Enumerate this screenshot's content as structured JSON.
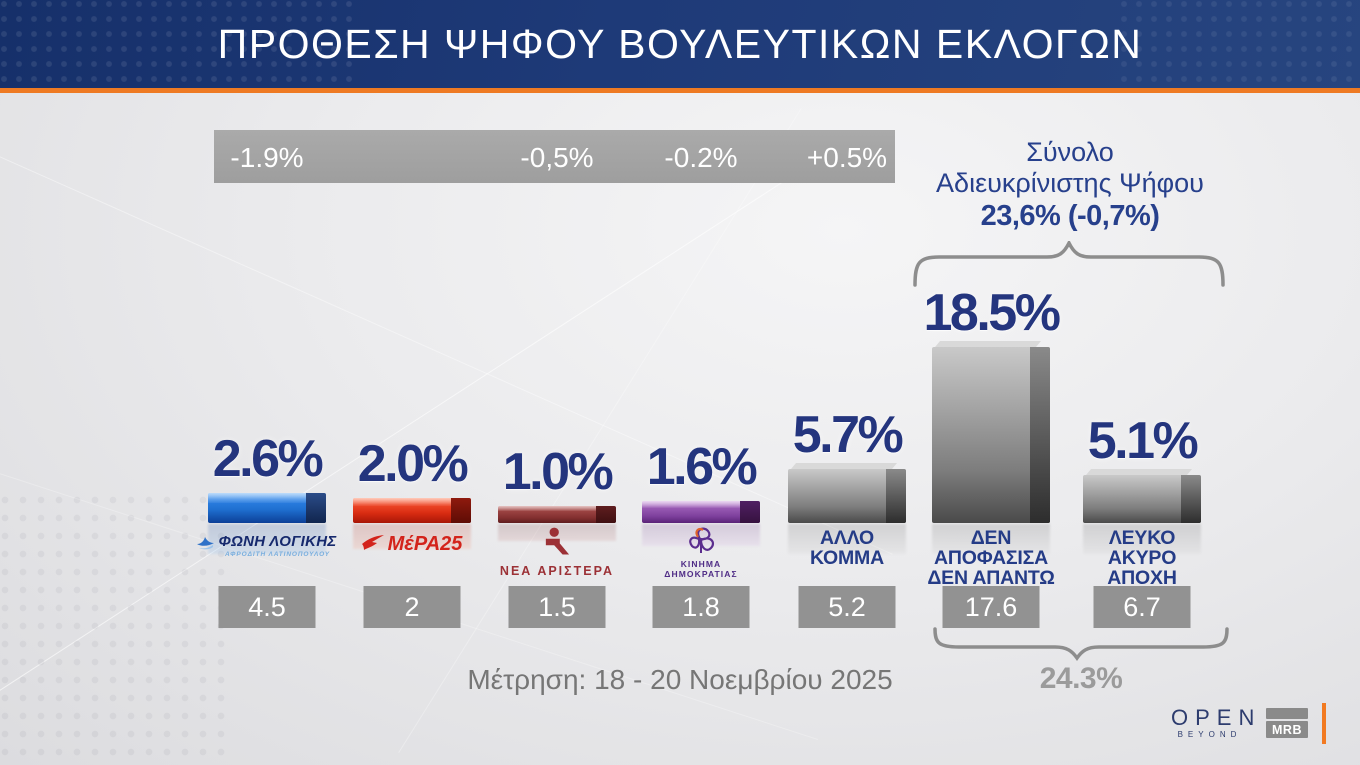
{
  "header": {
    "title": "ΠΡΟΘΕΣΗ ΨΗΦΟΥ ΒΟΥΛΕΥΤΙΚΩΝ ΕΚΛΟΓΩΝ"
  },
  "colors": {
    "header_blue": "#1e3a78",
    "accent_orange": "#ee7a23",
    "value_navy": "#24357e",
    "band_gray": "#a2a2a2",
    "box_gray": "#929292",
    "bracket_gray": "#8d8d8d",
    "bar_blue": "#2e83e6",
    "bar_red": "#ef4a2a",
    "bar_maroon": "#9c4342",
    "bar_purple": "#9a5cb5",
    "bar_gray": "#a9a9a9"
  },
  "undecided_summary": {
    "line1": "Σύνολο",
    "line2": "Αδιευκρίνιστης Ψήφου",
    "value": "23,6% (-0,7%)",
    "previous_total": "24.3%"
  },
  "survey_note": "Μέτρηση: 18 - 20 Νοεμβρίου 2025",
  "footer": {
    "open_word": "OPEN",
    "open_sub": "BEYOND",
    "mrb": "MRB"
  },
  "chart_data": {
    "type": "bar",
    "title": "ΠΡΟΘΕΣΗ ΨΗΦΟΥ ΒΟΥΛΕΥΤΙΚΩΝ ΕΚΛΟΓΩΝ",
    "ylabel": "%",
    "legend_position": "none",
    "grid": false,
    "categories": [
      "ΦΩΝΗ ΛΟΓΙΚΗΣ",
      "ΜέΡΑ25",
      "ΝΕΑ ΑΡΙΣΤΕΡΑ",
      "ΚΙΝΗΜΑ ΔΗΜΟΚΡΑΤΙΑΣ",
      "ΑΛΛΟ ΚΟΜΜΑ",
      "ΔΕΝ ΑΠΟΦΑΣΙΣΑ ΔΕΝ ΑΠΑΝΤΩ",
      "ΛΕΥΚΟ ΑΚΥΡΟ ΑΠΟΧΗ"
    ],
    "values": [
      2.6,
      2.0,
      1.0,
      1.6,
      5.7,
      18.5,
      5.1
    ],
    "previous_values": [
      4.5,
      2,
      1.5,
      1.8,
      5.2,
      17.6,
      6.7
    ],
    "changes": [
      "-1.9%",
      "",
      "-0,5%",
      "-0.2%",
      "+0.5%",
      "",
      ""
    ],
    "bars": [
      {
        "id": "foni-logikis",
        "party": "ΦΩΝΗ ΛΟΓΙΚΗΣ",
        "value": 2.6,
        "value_label": "2.6%",
        "change_label": "-1.9%",
        "previous_value": "4.5",
        "scheme": "blue",
        "logo": {
          "layout": "row",
          "icon": "wave-icon",
          "text": "ΦΩΝΗ ΛΟΓΙΚΗΣ",
          "sub": "ΑΦΡΟΔΙΤΗ ΛΑΤΙΝΟΠΟΥΛΟΥ",
          "color": "#16296d",
          "sub_color": "#79aede"
        }
      },
      {
        "id": "mera25",
        "party": "ΜέΡΑ25",
        "value": 2.0,
        "value_label": "2.0%",
        "change_label": "",
        "previous_value": "2",
        "scheme": "red",
        "logo": {
          "layout": "row",
          "icon": "bird-icon",
          "text": "ΜέΡΑ25",
          "color": "#d3231b"
        }
      },
      {
        "id": "nea-aristera",
        "party": "ΝΕΑ ΑΡΙΣΤΕΡΑ",
        "value": 1.0,
        "value_label": "1.0%",
        "change_label": "-0,5%",
        "previous_value": "1.5",
        "scheme": "maroon",
        "logo": {
          "layout": "stack",
          "icon": "person-icon",
          "text": "ΝΕΑ ΑΡΙΣΤΕΡΑ",
          "color": "#9c3136"
        }
      },
      {
        "id": "kinima-dimokratias",
        "party": "ΚΙΝΗΜΑ ΔΗΜΟΚΡΑΤΙΑΣ",
        "value": 1.6,
        "value_label": "1.6%",
        "change_label": "-0.2%",
        "previous_value": "1.8",
        "scheme": "purple",
        "logo": {
          "layout": "stack",
          "icon": "flower-icon",
          "text_lines": [
            "ΚΙΝΗΜΑ",
            "ΔΗΜΟΚΡΑΤΙΑΣ"
          ],
          "color": "#4f2c86"
        }
      },
      {
        "id": "allo-komma",
        "party": "ΑΛΛΟ ΚΟΜΜΑ",
        "value": 5.7,
        "value_label": "5.7%",
        "change_label": "+0.5%",
        "previous_value": "5.2",
        "scheme": "gray",
        "caption_lines": [
          "ΑΛΛΟ",
          "ΚΟΜΜΑ"
        ]
      },
      {
        "id": "den-apofasisa",
        "party": "ΔΕΝ ΑΠΟΦΑΣΙΣΑ ΔΕΝ ΑΠΑΝΤΩ",
        "value": 18.5,
        "value_label": "18.5%",
        "change_label": "",
        "previous_value": "17.6",
        "scheme": "gray",
        "caption_lines": [
          "ΔΕΝ ΑΠΟΦΑΣΙΣΑ",
          "ΔΕΝ ΑΠΑΝΤΩ"
        ]
      },
      {
        "id": "leyko-akyro-apoxi",
        "party": "ΛΕΥΚΟ ΑΚΥΡΟ ΑΠΟΧΗ",
        "value": 5.1,
        "value_label": "5.1%",
        "change_label": "",
        "previous_value": "6.7",
        "scheme": "gray",
        "caption_lines": [
          "ΛΕΥΚΟ",
          "ΑΚΥΡΟ",
          "ΑΠΟΧΗ"
        ]
      }
    ]
  }
}
